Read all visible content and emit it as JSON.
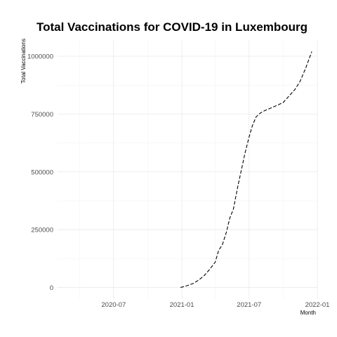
{
  "chart_data": {
    "type": "line",
    "title": "Total Vaccinations for COVID-19 in Luxembourg",
    "xlabel": "Month",
    "ylabel": "Total Vaccinations",
    "x_ticks": [
      "2020-07",
      "2021-01",
      "2021-07",
      "2022-01"
    ],
    "y_ticks": [
      0,
      250000,
      500000,
      750000,
      1000000
    ],
    "y_tick_labels": [
      "0",
      "250000",
      "500000",
      "750000",
      "1000000"
    ],
    "xlim": [
      "2020-02-01",
      "2022-01-01"
    ],
    "ylim": [
      -50000,
      1070000
    ],
    "grid": true,
    "legend": "none",
    "line_style": "dashed",
    "series": [
      {
        "x": [
          "2020-12-28",
          "2021-01-15",
          "2021-02-01",
          "2021-02-15",
          "2021-03-01",
          "2021-03-15",
          "2021-04-01",
          "2021-04-10",
          "2021-04-20",
          "2021-05-01",
          "2021-05-10",
          "2021-05-20",
          "2021-06-01",
          "2021-06-10",
          "2021-06-20",
          "2021-07-01",
          "2021-07-10",
          "2021-07-20",
          "2021-08-01",
          "2021-08-10",
          "2021-08-20",
          "2021-09-01",
          "2021-09-15",
          "2021-10-01",
          "2021-10-15",
          "2021-11-01",
          "2021-11-15",
          "2021-12-01",
          "2021-12-10",
          "2021-12-17"
        ],
        "y": [
          0,
          8000,
          18000,
          32000,
          50000,
          75000,
          110000,
          160000,
          185000,
          240000,
          300000,
          340000,
          440000,
          505000,
          580000,
          650000,
          700000,
          738000,
          755000,
          763000,
          770000,
          778000,
          788000,
          800000,
          825000,
          855000,
          890000,
          950000,
          990000,
          1020000
        ]
      }
    ]
  }
}
